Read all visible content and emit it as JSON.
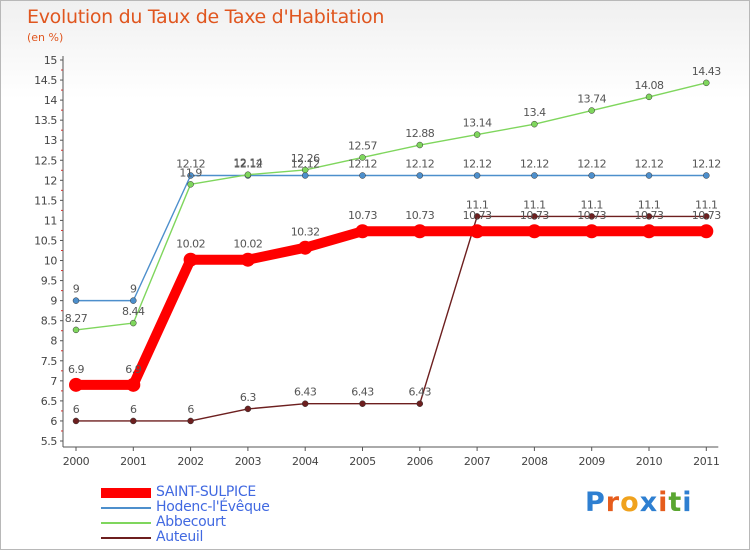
{
  "header": {
    "title": "Evolution du Taux de Taxe d'Habitation",
    "subtitle": "(en %)"
  },
  "logo": {
    "letters": [
      "P",
      "r",
      "o",
      "x",
      "i",
      "t",
      "i"
    ],
    "colors": [
      "#2e7fd1",
      "#e65c1c",
      "#f0a21d",
      "#2e7fd1",
      "#e65c1c",
      "#5aa631",
      "#2e7fd1"
    ]
  },
  "chart_data": {
    "type": "line",
    "title": "Evolution du Taux de Taxe d'Habitation",
    "subtitle": "(en %)",
    "x": [
      "2000",
      "2001",
      "2002",
      "2003",
      "2004",
      "2005",
      "2006",
      "2007",
      "2008",
      "2009",
      "2010",
      "2011"
    ],
    "ylim": [
      5.5,
      15
    ],
    "yticks": [
      "5.5",
      "6",
      "6.5",
      "7",
      "7.5",
      "8",
      "8.5",
      "9",
      "9.5",
      "10",
      "10.5",
      "11",
      "11.5",
      "12",
      "12.5",
      "13",
      "13.5",
      "14",
      "14.5",
      "15"
    ],
    "grid": false,
    "legend_position": "bottom-left",
    "series": [
      {
        "name": "Hodenc-l'Évêque",
        "color": "#4d8fcc",
        "values": [
          9,
          9,
          12.12,
          12.12,
          12.12,
          12.12,
          12.12,
          12.12,
          12.12,
          12.12,
          12.12,
          12.12
        ],
        "labels": [
          "9",
          "9",
          "12.12",
          "12.12",
          "12.12",
          "12.12",
          "12.12",
          "12.12",
          "12.12",
          "12.12",
          "12.12",
          "12.12"
        ]
      },
      {
        "name": "Abbecourt",
        "color": "#7fd65d",
        "values": [
          8.27,
          8.44,
          11.9,
          12.14,
          12.26,
          12.57,
          12.88,
          13.14,
          13.4,
          13.74,
          14.08,
          14.43
        ],
        "labels": [
          "8.27",
          "8.44",
          "11.9",
          "12.14",
          "12.26",
          "12.57",
          "12.88",
          "13.14",
          "13.4",
          "13.74",
          "14.08",
          "14.43"
        ]
      },
      {
        "name": "Auteuil",
        "color": "#6d1f1f",
        "values": [
          6,
          6,
          6,
          6.3,
          6.43,
          6.43,
          6.43,
          11.1,
          11.1,
          11.1,
          11.1,
          11.1
        ],
        "labels": [
          "6",
          "6",
          "6",
          "6.3",
          "6.43",
          "6.43",
          "6.43",
          "11.1",
          "11.1",
          "11.1",
          "11.1",
          "11.1"
        ]
      },
      {
        "name": "SAINT-SULPICE",
        "color": "#ff0000",
        "values": [
          6.9,
          6.9,
          10.02,
          10.02,
          10.32,
          10.73,
          10.73,
          10.73,
          10.73,
          10.73,
          10.73,
          10.73
        ],
        "labels": [
          "6.9",
          "6.9",
          "10.02",
          "10.02",
          "10.32",
          "10.73",
          "10.73",
          "10.73",
          "10.73",
          "10.73",
          "10.73",
          "10.73"
        ]
      }
    ],
    "legend": [
      {
        "name": "SAINT-SULPICE",
        "color": "#ff0000",
        "text_color": "#4169e1"
      },
      {
        "name": "Hodenc-l'Évêque",
        "color": "#4d8fcc",
        "text_color": "#4169e1"
      },
      {
        "name": "Abbecourt",
        "color": "#7fd65d",
        "text_color": "#4169e1"
      },
      {
        "name": "Auteuil",
        "color": "#6d1f1f",
        "text_color": "#4169e1"
      }
    ]
  }
}
